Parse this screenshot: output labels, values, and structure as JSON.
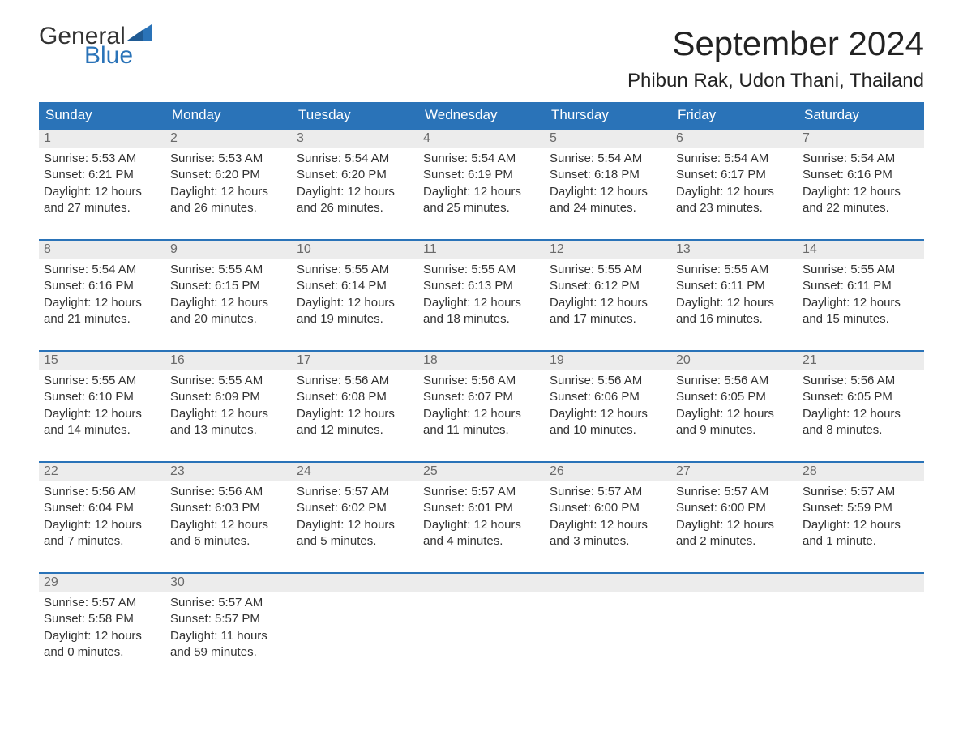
{
  "logo": {
    "text1": "General",
    "text2": "Blue",
    "flag_color": "#2a73b8"
  },
  "header": {
    "title": "September 2024",
    "location": "Phibun Rak, Udon Thani, Thailand"
  },
  "colors": {
    "header_bg": "#2a73b8",
    "header_text": "#ffffff",
    "daynum_bg": "#ececec",
    "daynum_border": "#2a73b8",
    "text": "#333333"
  },
  "columns": [
    "Sunday",
    "Monday",
    "Tuesday",
    "Wednesday",
    "Thursday",
    "Friday",
    "Saturday"
  ],
  "weeks": [
    [
      {
        "n": "1",
        "sr": "Sunrise: 5:53 AM",
        "ss": "Sunset: 6:21 PM",
        "dl": "Daylight: 12 hours and 27 minutes."
      },
      {
        "n": "2",
        "sr": "Sunrise: 5:53 AM",
        "ss": "Sunset: 6:20 PM",
        "dl": "Daylight: 12 hours and 26 minutes."
      },
      {
        "n": "3",
        "sr": "Sunrise: 5:54 AM",
        "ss": "Sunset: 6:20 PM",
        "dl": "Daylight: 12 hours and 26 minutes."
      },
      {
        "n": "4",
        "sr": "Sunrise: 5:54 AM",
        "ss": "Sunset: 6:19 PM",
        "dl": "Daylight: 12 hours and 25 minutes."
      },
      {
        "n": "5",
        "sr": "Sunrise: 5:54 AM",
        "ss": "Sunset: 6:18 PM",
        "dl": "Daylight: 12 hours and 24 minutes."
      },
      {
        "n": "6",
        "sr": "Sunrise: 5:54 AM",
        "ss": "Sunset: 6:17 PM",
        "dl": "Daylight: 12 hours and 23 minutes."
      },
      {
        "n": "7",
        "sr": "Sunrise: 5:54 AM",
        "ss": "Sunset: 6:16 PM",
        "dl": "Daylight: 12 hours and 22 minutes."
      }
    ],
    [
      {
        "n": "8",
        "sr": "Sunrise: 5:54 AM",
        "ss": "Sunset: 6:16 PM",
        "dl": "Daylight: 12 hours and 21 minutes."
      },
      {
        "n": "9",
        "sr": "Sunrise: 5:55 AM",
        "ss": "Sunset: 6:15 PM",
        "dl": "Daylight: 12 hours and 20 minutes."
      },
      {
        "n": "10",
        "sr": "Sunrise: 5:55 AM",
        "ss": "Sunset: 6:14 PM",
        "dl": "Daylight: 12 hours and 19 minutes."
      },
      {
        "n": "11",
        "sr": "Sunrise: 5:55 AM",
        "ss": "Sunset: 6:13 PM",
        "dl": "Daylight: 12 hours and 18 minutes."
      },
      {
        "n": "12",
        "sr": "Sunrise: 5:55 AM",
        "ss": "Sunset: 6:12 PM",
        "dl": "Daylight: 12 hours and 17 minutes."
      },
      {
        "n": "13",
        "sr": "Sunrise: 5:55 AM",
        "ss": "Sunset: 6:11 PM",
        "dl": "Daylight: 12 hours and 16 minutes."
      },
      {
        "n": "14",
        "sr": "Sunrise: 5:55 AM",
        "ss": "Sunset: 6:11 PM",
        "dl": "Daylight: 12 hours and 15 minutes."
      }
    ],
    [
      {
        "n": "15",
        "sr": "Sunrise: 5:55 AM",
        "ss": "Sunset: 6:10 PM",
        "dl": "Daylight: 12 hours and 14 minutes."
      },
      {
        "n": "16",
        "sr": "Sunrise: 5:55 AM",
        "ss": "Sunset: 6:09 PM",
        "dl": "Daylight: 12 hours and 13 minutes."
      },
      {
        "n": "17",
        "sr": "Sunrise: 5:56 AM",
        "ss": "Sunset: 6:08 PM",
        "dl": "Daylight: 12 hours and 12 minutes."
      },
      {
        "n": "18",
        "sr": "Sunrise: 5:56 AM",
        "ss": "Sunset: 6:07 PM",
        "dl": "Daylight: 12 hours and 11 minutes."
      },
      {
        "n": "19",
        "sr": "Sunrise: 5:56 AM",
        "ss": "Sunset: 6:06 PM",
        "dl": "Daylight: 12 hours and 10 minutes."
      },
      {
        "n": "20",
        "sr": "Sunrise: 5:56 AM",
        "ss": "Sunset: 6:05 PM",
        "dl": "Daylight: 12 hours and 9 minutes."
      },
      {
        "n": "21",
        "sr": "Sunrise: 5:56 AM",
        "ss": "Sunset: 6:05 PM",
        "dl": "Daylight: 12 hours and 8 minutes."
      }
    ],
    [
      {
        "n": "22",
        "sr": "Sunrise: 5:56 AM",
        "ss": "Sunset: 6:04 PM",
        "dl": "Daylight: 12 hours and 7 minutes."
      },
      {
        "n": "23",
        "sr": "Sunrise: 5:56 AM",
        "ss": "Sunset: 6:03 PM",
        "dl": "Daylight: 12 hours and 6 minutes."
      },
      {
        "n": "24",
        "sr": "Sunrise: 5:57 AM",
        "ss": "Sunset: 6:02 PM",
        "dl": "Daylight: 12 hours and 5 minutes."
      },
      {
        "n": "25",
        "sr": "Sunrise: 5:57 AM",
        "ss": "Sunset: 6:01 PM",
        "dl": "Daylight: 12 hours and 4 minutes."
      },
      {
        "n": "26",
        "sr": "Sunrise: 5:57 AM",
        "ss": "Sunset: 6:00 PM",
        "dl": "Daylight: 12 hours and 3 minutes."
      },
      {
        "n": "27",
        "sr": "Sunrise: 5:57 AM",
        "ss": "Sunset: 6:00 PM",
        "dl": "Daylight: 12 hours and 2 minutes."
      },
      {
        "n": "28",
        "sr": "Sunrise: 5:57 AM",
        "ss": "Sunset: 5:59 PM",
        "dl": "Daylight: 12 hours and 1 minute."
      }
    ],
    [
      {
        "n": "29",
        "sr": "Sunrise: 5:57 AM",
        "ss": "Sunset: 5:58 PM",
        "dl": "Daylight: 12 hours and 0 minutes."
      },
      {
        "n": "30",
        "sr": "Sunrise: 5:57 AM",
        "ss": "Sunset: 5:57 PM",
        "dl": "Daylight: 11 hours and 59 minutes."
      },
      {
        "n": "",
        "sr": "",
        "ss": "",
        "dl": ""
      },
      {
        "n": "",
        "sr": "",
        "ss": "",
        "dl": ""
      },
      {
        "n": "",
        "sr": "",
        "ss": "",
        "dl": ""
      },
      {
        "n": "",
        "sr": "",
        "ss": "",
        "dl": ""
      },
      {
        "n": "",
        "sr": "",
        "ss": "",
        "dl": ""
      }
    ]
  ]
}
